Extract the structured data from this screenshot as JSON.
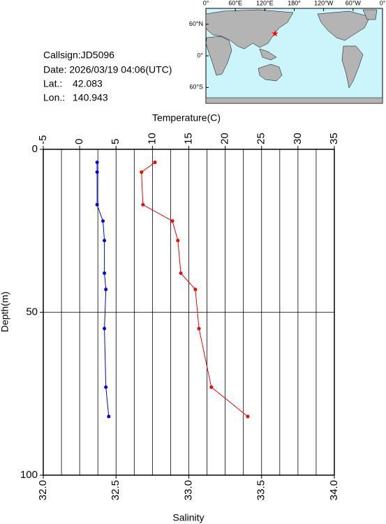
{
  "info": {
    "callsign": "Callsign:JD5096",
    "date": "Date:  2026/03/19 04:06(UTC)",
    "lat_label": "Lat.:",
    "lat": 42.083,
    "lon_label": "Lon.:",
    "lon": 140.943
  },
  "map": {
    "lonlim": [
      0,
      360
    ],
    "latlim": [
      90,
      -90
    ],
    "lon_ticks": [
      {
        "value": 0,
        "label": "0°"
      },
      {
        "value": 60,
        "label": "60°E"
      },
      {
        "value": 120,
        "label": "120°E"
      },
      {
        "value": 180,
        "label": "180°"
      },
      {
        "value": 240,
        "label": "120°W"
      },
      {
        "value": 300,
        "label": "60°W"
      },
      {
        "value": 360,
        "label": "0°"
      }
    ],
    "lat_ticks": [
      {
        "value": 60,
        "label": "60°N"
      },
      {
        "value": 0,
        "label": "0°"
      },
      {
        "value": -60,
        "label": "60°S"
      }
    ],
    "marker_color": "#ff0000"
  },
  "chart_data": {
    "type": "line",
    "y_label": "Depth(m)",
    "ylim": [
      0,
      100
    ],
    "yticks": [
      0,
      50,
      100
    ],
    "grid": true,
    "x_top": {
      "label": "Temperature(C)",
      "lim": [
        -5,
        35
      ],
      "ticks": [
        -5,
        0,
        5,
        10,
        15,
        20,
        25,
        30,
        35
      ],
      "grid": [
        -2.5,
        0,
        2.5,
        5,
        7.5,
        10,
        12.5,
        15,
        17.5,
        20,
        22.5,
        25,
        27.5,
        30,
        32.5
      ]
    },
    "x_bottom": {
      "label": "Salinity",
      "lim": [
        32,
        34
      ],
      "ticks": [
        {
          "value": 32,
          "label": "32.0"
        },
        {
          "value": 32.5,
          "label": "32.5"
        },
        {
          "value": 33,
          "label": "33.0"
        },
        {
          "value": 33.5,
          "label": "33.5"
        },
        {
          "value": 34,
          "label": "34.0"
        }
      ]
    },
    "depth": [
      4,
      7,
      17,
      22,
      28,
      38,
      43,
      55,
      73,
      82
    ],
    "temperature": {
      "color": "#ff0000",
      "values": [
        10.35,
        8.5,
        8.7,
        12.75,
        13.5,
        13.9,
        15.9,
        16.4,
        18.1,
        23.1
      ]
    },
    "salinity": {
      "color": "#0000ff",
      "values": [
        32.37,
        32.37,
        32.37,
        32.41,
        32.42,
        32.42,
        32.43,
        32.42,
        32.43,
        32.45
      ]
    }
  }
}
